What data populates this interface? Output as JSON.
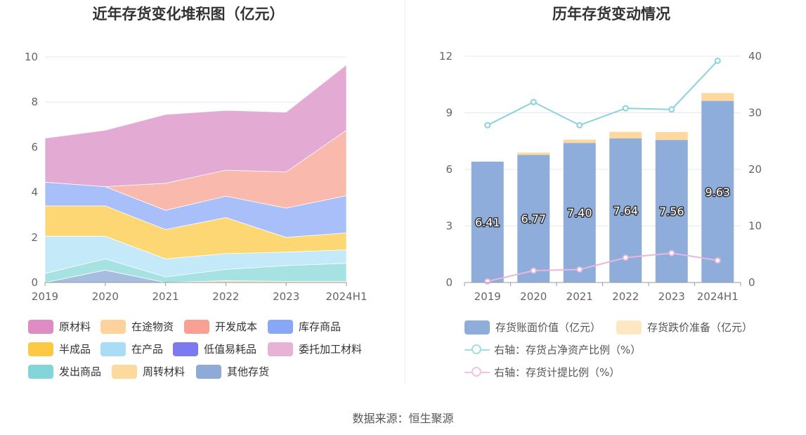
{
  "source": "数据来源：恒生聚源",
  "left_legend": {
    "items": [
      {
        "label": "原材料",
        "color": "#de8cc3"
      },
      {
        "label": "在途物资",
        "color": "#fdd29b"
      },
      {
        "label": "开发成本",
        "color": "#f8a193"
      },
      {
        "label": "库存商品",
        "color": "#88a7f7"
      },
      {
        "label": "半成品",
        "color": "#fdc844"
      },
      {
        "label": "在产品",
        "color": "#a9ddf5"
      },
      {
        "label": "低值易耗品",
        "color": "#7b7af1"
      },
      {
        "label": "委托加工材料",
        "color": "#e6b2d6"
      },
      {
        "label": "发出商品",
        "color": "#83d5d8"
      },
      {
        "label": "周转材料",
        "color": "#fcd99c"
      },
      {
        "label": "其他存货",
        "color": "#8eaad6"
      }
    ]
  },
  "right_legend": {
    "items": [
      {
        "label": "存货账面价值（亿元）",
        "kind": "bar",
        "color": "#8eaddb"
      },
      {
        "label": "存货跌价准备（亿元）",
        "kind": "bar",
        "color": "#fde7c4"
      },
      {
        "label": "右轴：存货占净资产比例（%）",
        "kind": "line",
        "color": "#9fe0e2"
      },
      {
        "label": "右轴：存货计提比例（%）",
        "kind": "line",
        "color": "#f1c4e4"
      }
    ]
  },
  "chart_data": [
    {
      "type": "area",
      "stacked": true,
      "title": "近年存货变化堆积图（亿元）",
      "categories": [
        "2019",
        "2020",
        "2021",
        "2022",
        "2023",
        "2024H1"
      ],
      "ylim": [
        0,
        10
      ],
      "yticks": [
        0,
        2,
        4,
        6,
        8,
        10
      ],
      "series": [
        {
          "name": "其他存货",
          "color": "#a7bde0",
          "values": [
            0.0,
            0.55,
            0.0,
            0.0,
            0.0,
            0.0
          ]
        },
        {
          "name": "周转材料",
          "color": "#fde2b8",
          "values": [
            0.0,
            0.0,
            0.0,
            0.08,
            0.05,
            0.05
          ]
        },
        {
          "name": "发出商品",
          "color": "#a6e2e2",
          "values": [
            0.4,
            0.5,
            0.25,
            0.5,
            0.7,
            0.8
          ]
        },
        {
          "name": "低值易耗品",
          "color": "#9e9df4",
          "values": [
            0.0,
            0.0,
            0.0,
            0.0,
            0.0,
            0.0
          ]
        },
        {
          "name": "在产品",
          "color": "#c4e9f9",
          "values": [
            1.65,
            1.0,
            0.8,
            0.7,
            0.6,
            0.6
          ]
        },
        {
          "name": "半成品",
          "color": "#fdd774",
          "values": [
            1.35,
            1.35,
            1.3,
            1.6,
            0.65,
            0.75
          ]
        },
        {
          "name": "库存商品",
          "color": "#a9bff9",
          "values": [
            1.05,
            0.85,
            0.85,
            0.95,
            1.3,
            1.65
          ]
        },
        {
          "name": "开发成本",
          "color": "#fab9ad",
          "values": [
            0.0,
            0.0,
            1.2,
            1.15,
            1.6,
            2.9
          ]
        },
        {
          "name": "在途物资",
          "color": "#fddcb4",
          "values": [
            0.0,
            0.0,
            0.0,
            0.0,
            0.0,
            0.0
          ]
        },
        {
          "name": "委托加工材料",
          "color": "#ecc5e0",
          "values": [
            0.0,
            0.0,
            0.0,
            0.0,
            0.0,
            0.0
          ]
        },
        {
          "name": "原材料",
          "color": "#e3abd3",
          "values": [
            1.95,
            2.5,
            3.05,
            2.65,
            2.65,
            2.9
          ]
        }
      ]
    },
    {
      "type": "bar+line",
      "stacked_bars": true,
      "title": "历年存货变动情况",
      "categories": [
        "2019",
        "2020",
        "2021",
        "2022",
        "2023",
        "2024H1"
      ],
      "ylim_left": [
        0,
        12
      ],
      "yticks_left": [
        0,
        3,
        6,
        9,
        12
      ],
      "ylim_right": [
        0,
        40
      ],
      "yticks_right": [
        0,
        10,
        20,
        30,
        40
      ],
      "bars": [
        {
          "name": "存货账面价值（亿元）",
          "color": "#8eaddb",
          "values": [
            6.41,
            6.77,
            7.4,
            7.64,
            7.56,
            9.63
          ],
          "labels": [
            "6.41",
            "6.77",
            "7.40",
            "7.64",
            "7.56",
            "9.63"
          ]
        },
        {
          "name": "存货跌价准备（亿元）",
          "color": "#fdd9a0",
          "values": [
            0.0,
            0.12,
            0.18,
            0.35,
            0.42,
            0.42
          ]
        }
      ],
      "lines": [
        {
          "name": "存货占净资产比例（%）",
          "axis": "right",
          "color": "#8ad3d8",
          "values": [
            27.8,
            31.9,
            27.8,
            30.8,
            30.6,
            39.2
          ]
        },
        {
          "name": "存货计提比例（%）",
          "axis": "right",
          "color": "#e7b7dc",
          "values": [
            0.2,
            2.1,
            2.3,
            4.4,
            5.2,
            3.9
          ]
        }
      ]
    }
  ]
}
